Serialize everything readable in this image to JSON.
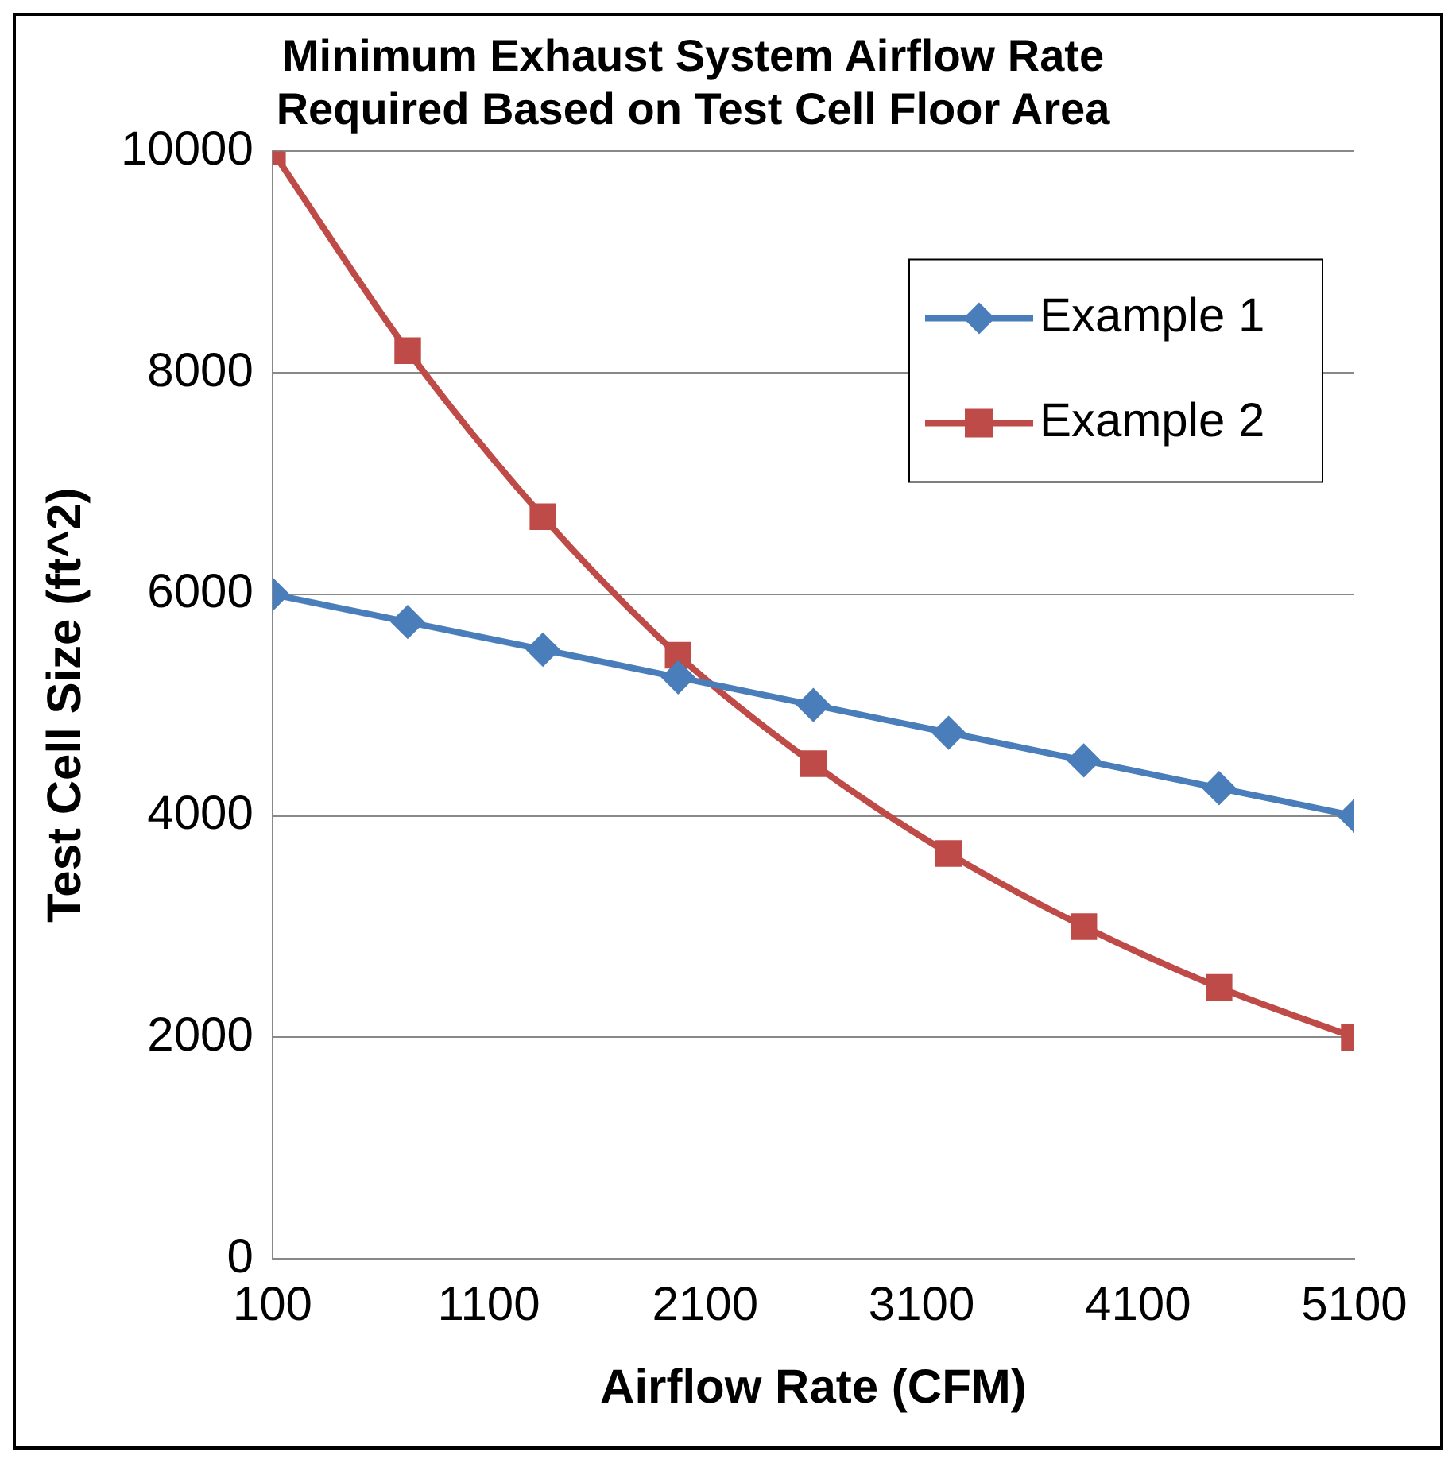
{
  "chart_data": {
    "type": "line",
    "title": "Minimum Exhaust System Airflow Rate\nRequired Based on Test Cell Floor Area",
    "xlabel": "Airflow Rate (CFM)",
    "ylabel": "Test Cell Size (ft^2)",
    "x": [
      100,
      725,
      1350,
      1975,
      2600,
      3225,
      3850,
      4475,
      5100
    ],
    "series": [
      {
        "name": "Example 1",
        "color": "#4a7ebb",
        "marker": "diamond",
        "values": [
          6000,
          5750,
          5500,
          5250,
          5000,
          4750,
          4500,
          4250,
          4000
        ]
      },
      {
        "name": "Example 2",
        "color": "#be4b48",
        "marker": "square",
        "values": [
          10000,
          8200,
          6700,
          5450,
          4470,
          3660,
          3000,
          2450,
          2000
        ]
      }
    ],
    "xlim": [
      100,
      5100
    ],
    "xticks": [
      100,
      1100,
      2100,
      3100,
      4100,
      5100
    ],
    "ylim": [
      0,
      10000
    ],
    "yticks": [
      0,
      2000,
      4000,
      6000,
      8000,
      10000
    ],
    "grid": "y",
    "legend": "top right",
    "line_style": "solid"
  }
}
